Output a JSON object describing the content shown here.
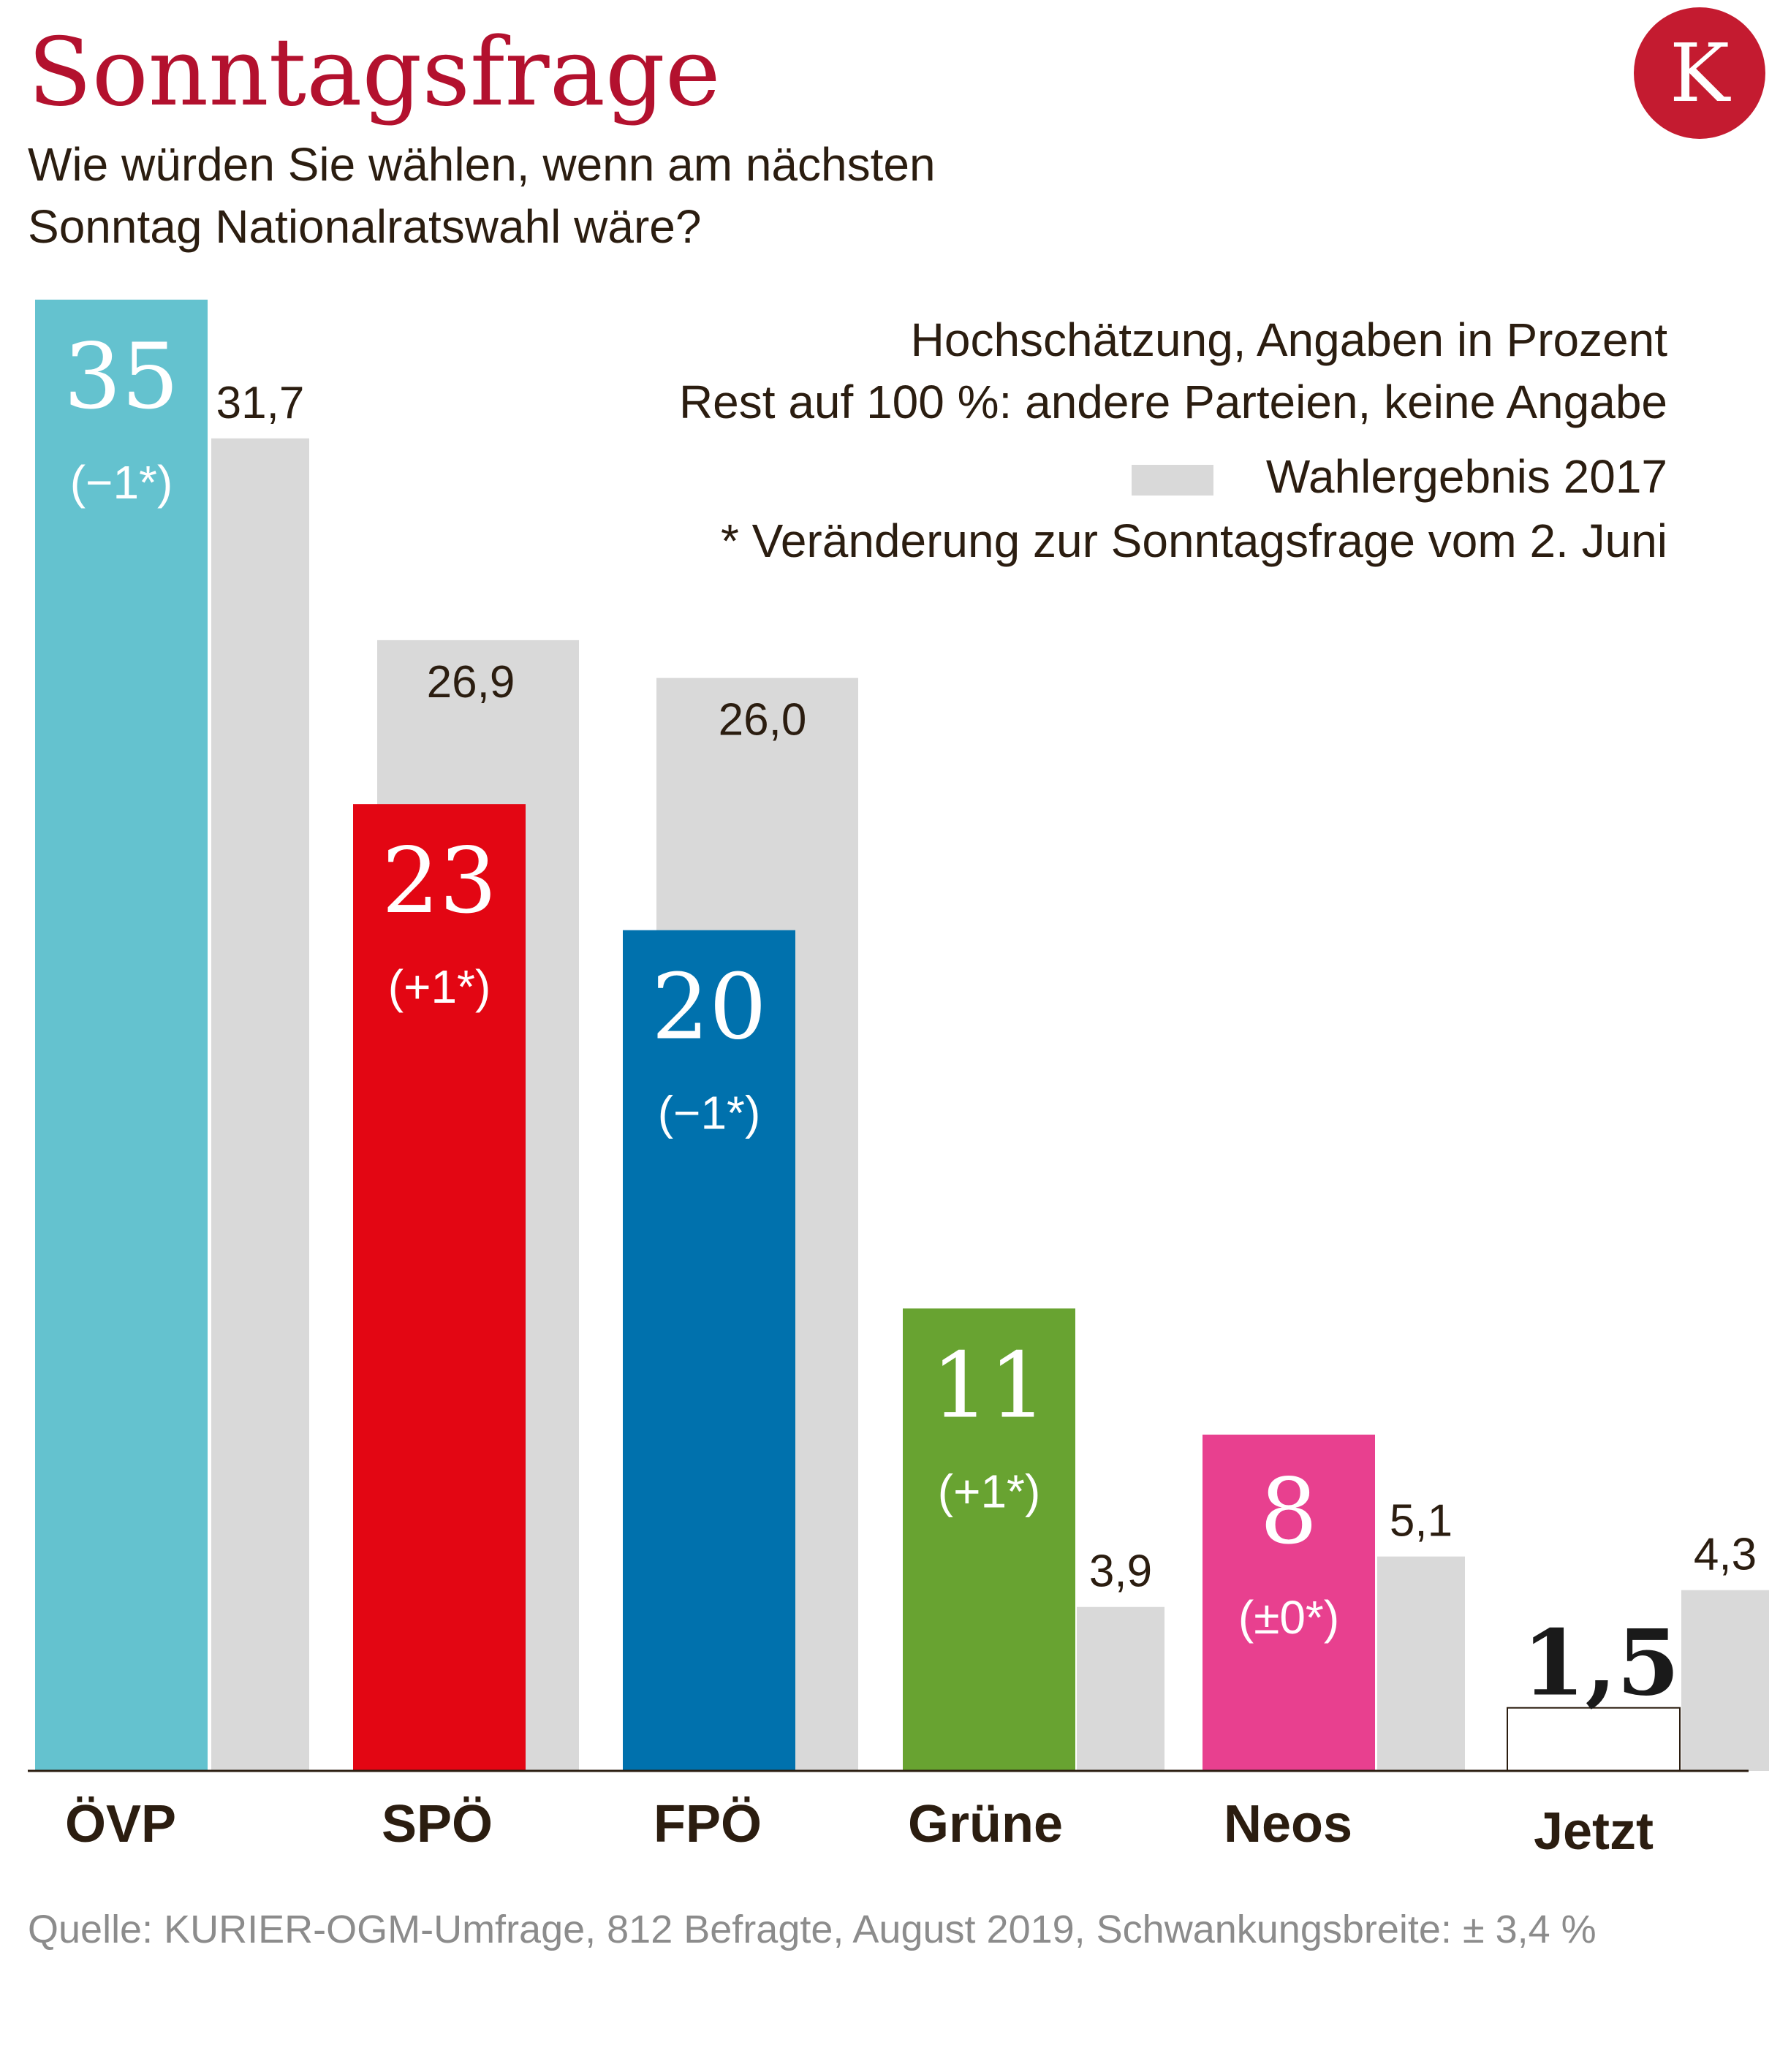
{
  "title": "Sonntagsfrage",
  "subtitle": [
    "Wie würden Sie wählen, wenn am nächsten",
    "Sonntag Nationalratswahl wäre?"
  ],
  "logo_letter": "K",
  "notes": {
    "line1": "Hochschätzung, Angaben in Prozent",
    "line2": "Rest auf 100 %: andere Parteien, keine Angabe",
    "legend_2017": "Wahlergebnis 2017",
    "asterisk": "* Veränderung zur Sonntagsfrage vom 2. Juni"
  },
  "source": "Quelle: KURIER-OGM-Umfrage, 812 Befragte, August 2019, Schwankungsbreite: ± 3,4 %",
  "colors": {
    "title": "#b3112e",
    "logo": "#c41b30",
    "result_2017": "#d9d9d9",
    "OEVP": "#64c2cf",
    "SPOE": "#e30613",
    "FPOE": "#0071ad",
    "Gruene": "#68a331",
    "Neos": "#e8408f",
    "Jetzt": "#ffffff"
  },
  "chart_data": {
    "type": "bar",
    "categories": [
      "ÖVP",
      "SPÖ",
      "FPÖ",
      "Grüne",
      "Neos",
      "Jetzt"
    ],
    "series": [
      {
        "name": "",
        "values": [
          35,
          23,
          20,
          11,
          8,
          1.5
        ],
        "labels": [
          "35",
          "23",
          "20",
          "11",
          "8",
          "1,5"
        ],
        "changes": [
          "(−1*)",
          "(+1*)",
          "(−1*)",
          "(+1*)",
          "(±0*)",
          ""
        ],
        "colors": [
          "#64c2cf",
          "#e30613",
          "#0071ad",
          "#68a331",
          "#e8408f",
          "#ffffff"
        ]
      },
      {
        "name": "Wahlergebnis 2017",
        "values": [
          31.7,
          26.9,
          26.0,
          3.9,
          5.1,
          4.3
        ],
        "labels": [
          "31,7",
          "26,9",
          "26,0",
          "3,9",
          "5,1",
          "4,3"
        ],
        "color": "#d9d9d9"
      }
    ],
    "ylim": [
      0,
      35
    ],
    "grid": false,
    "legend": "top-right",
    "xlabel": "",
    "ylabel": ""
  }
}
